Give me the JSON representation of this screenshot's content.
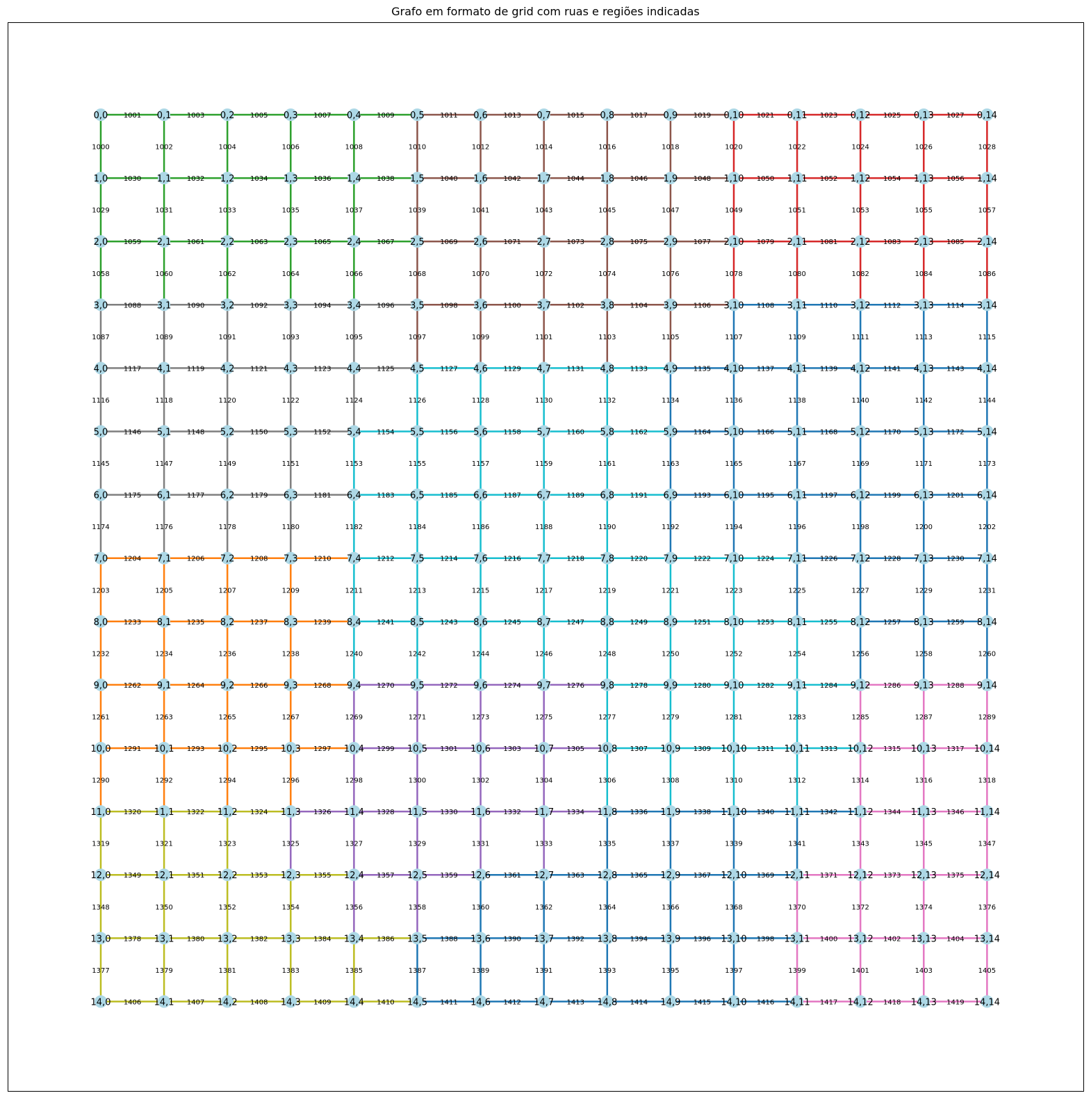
{
  "title": "Grafo em formato de grid com ruas e regiões indicadas",
  "chart_data": {
    "type": "graph",
    "grid_rows": 15,
    "grid_cols": 15,
    "node_label_format": "row,col",
    "node_color": "#add8e6",
    "edge_label_start": 1000,
    "edge_label_rule": "row-major: for each node, vertical edge to node below is numbered before horizontal edge to node at right",
    "last_row_edge_labels": [
      "1406",
      "1407",
      "1408",
      "1409",
      "1410",
      "1411",
      "1412",
      "1413",
      "1414",
      "1415",
      "1416",
      "1417",
      "1418",
      "1419"
    ],
    "region_colors": {
      "G": "#2ca02c",
      "B": "#8c564b",
      "R": "#d62728",
      "A": "#7f7f7f",
      "C": "#17becf",
      "D": "#1f77b4",
      "O": "#ff7f0e",
      "P": "#9467bd",
      "K": "#e377c2",
      "Y": "#bcbd22"
    },
    "regions": [
      "GGGGGBBBBBRRRRR",
      "GGGGGBBBBBRRRRR",
      "GGGGGBBBBBRRRRR",
      "AAAAABBBBBDDDDD",
      "AAAAACCCCDDDDDD",
      "AAAACCCCCDDDDDD",
      "AAAACCCCCDDDDDD",
      "OOOOCCCCCCCDDDD",
      "OOOOCCCCCCCCDDD",
      "OOOOPPPPCCCCKKK",
      "OOOOPPPPCCCCKKK",
      "YYYPPPPPDDDDKKK",
      "YYYYPPDDDDDKKKK",
      "YYYYYDDDDDDKKKK",
      "YYYYYDDDDDDKKKK"
    ]
  }
}
